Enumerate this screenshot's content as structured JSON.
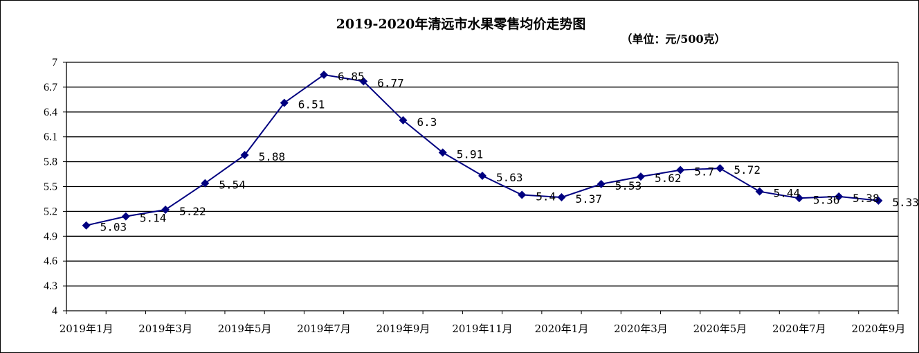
{
  "chart_data": {
    "type": "line",
    "title": "2019-2020年清远市水果零售均价走势图",
    "subtitle": "（单位：元/500克）",
    "ylim": [
      4,
      7
    ],
    "yticks": [
      "4",
      "4.3",
      "4.6",
      "4.9",
      "5.2",
      "5.5",
      "5.8",
      "6.1",
      "6.4",
      "6.7",
      "7"
    ],
    "xtick_labels": [
      "2019年1月",
      "2019年3月",
      "2019年5月",
      "2019年7月",
      "2019年9月",
      "2019年11月",
      "2020年1月",
      "2020年3月",
      "2020年5月",
      "2020年7月",
      "2020年9月"
    ],
    "grid": true,
    "legend": "none",
    "series": [
      {
        "color": "#000080",
        "values": [
          5.03,
          5.14,
          5.22,
          5.54,
          5.88,
          6.51,
          6.85,
          6.77,
          6.3,
          5.91,
          5.63,
          5.4,
          5.37,
          5.53,
          5.62,
          5.7,
          5.72,
          5.44,
          5.36,
          5.38,
          5.33
        ],
        "labels": [
          "5.03",
          "5.14",
          "5.22",
          "5.54",
          "5.88",
          "6.51",
          "6.85",
          "6.77",
          "6.3",
          "5.91",
          "5.63",
          "5.4",
          "5.37",
          "5.53",
          "5.62",
          "5.7",
          "5.72",
          "5.44",
          "5.36",
          "5.38",
          "5.33"
        ]
      }
    ]
  }
}
